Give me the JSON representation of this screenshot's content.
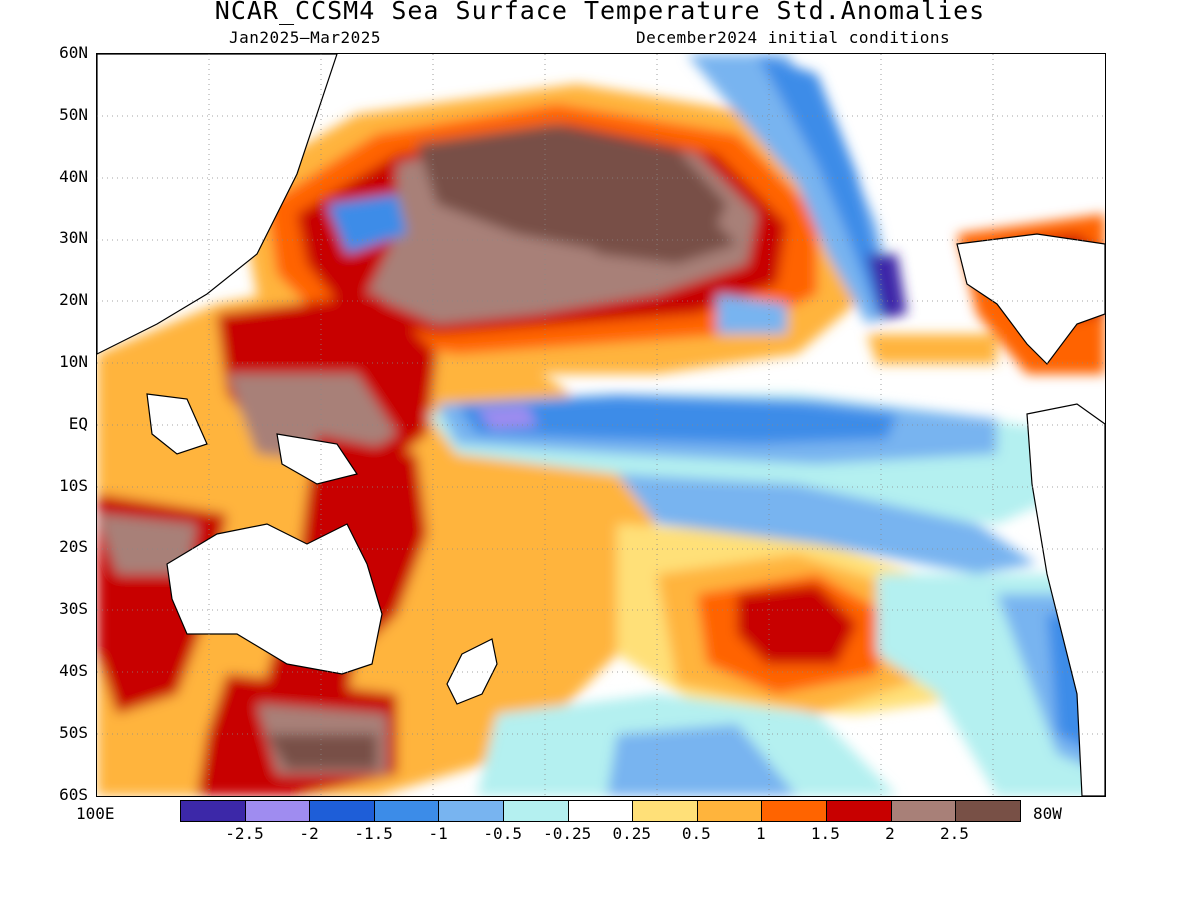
{
  "title": "NCAR_CCSM4 Sea Surface Temperature Std.Anomalies",
  "subtitle_left": "Jan2025–Mar2025",
  "subtitle_right": "December2024 initial conditions",
  "lat_labels": [
    "60N",
    "50N",
    "40N",
    "30N",
    "20N",
    "10N",
    "EQ",
    "10S",
    "20S",
    "30S",
    "40S",
    "50S",
    "60S"
  ],
  "lon_left": "100E",
  "lon_right": "80W",
  "colorbar": {
    "colors": [
      "#3c28a8",
      "#9f8cf0",
      "#1e5ed8",
      "#3c8ce8",
      "#78b4f0",
      "#b4f0f0",
      "#ffffff",
      "#ffe078",
      "#ffb43c",
      "#ff6400",
      "#c80000",
      "#a88078",
      "#785046"
    ],
    "labels": [
      "-2.5",
      "-2",
      "-1.5",
      "-1",
      "-0.5",
      "-0.25",
      "0.25",
      "0.5",
      "1",
      "1.5",
      "2",
      "2.5"
    ]
  },
  "legend": {
    "value_range": [
      -3,
      3
    ]
  }
}
